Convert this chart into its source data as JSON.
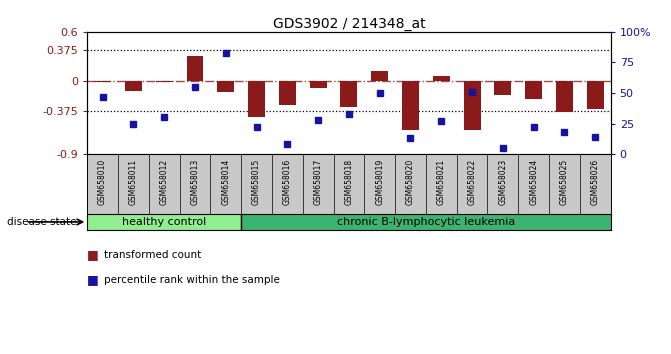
{
  "title": "GDS3902 / 214348_at",
  "samples": [
    "GSM658010",
    "GSM658011",
    "GSM658012",
    "GSM658013",
    "GSM658014",
    "GSM658015",
    "GSM658016",
    "GSM658017",
    "GSM658018",
    "GSM658019",
    "GSM658020",
    "GSM658021",
    "GSM658022",
    "GSM658023",
    "GSM658024",
    "GSM658025",
    "GSM658026"
  ],
  "red_bars": [
    -0.02,
    -0.12,
    -0.02,
    0.3,
    -0.14,
    -0.45,
    -0.3,
    -0.09,
    -0.32,
    0.12,
    -0.6,
    0.06,
    -0.6,
    -0.17,
    -0.23,
    -0.38,
    -0.35
  ],
  "blue_dots": [
    47,
    25,
    30,
    55,
    83,
    22,
    8,
    28,
    33,
    50,
    13,
    27,
    51,
    5,
    22,
    18,
    14
  ],
  "hc_count": 5,
  "ylim_left": [
    -0.9,
    0.6
  ],
  "ylim_right": [
    0,
    100
  ],
  "yticks_left": [
    -0.9,
    -0.375,
    0.0,
    0.375,
    0.6
  ],
  "ytick_labels_left": [
    "-0.9",
    "-0.375",
    "0",
    "0.375",
    "0.6"
  ],
  "yticks_right": [
    0,
    25,
    50,
    75,
    100
  ],
  "ytick_labels_right": [
    "0",
    "25",
    "50",
    "75",
    "100%"
  ],
  "hline_dotted": [
    -0.375,
    0.375
  ],
  "hline_dashdot": 0.0,
  "bar_color": "#8B1A1A",
  "dot_color": "#1414A0",
  "hc_color": "#90EE90",
  "leuk_color": "#3CB371",
  "label_bg": "#C8C8C8",
  "background_color": "#ffffff"
}
